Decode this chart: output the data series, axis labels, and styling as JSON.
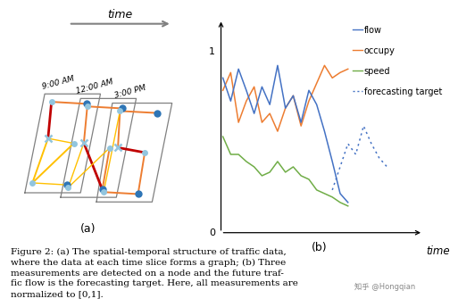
{
  "figure_caption": "Figure 2: (a) The spatial-temporal structure of traffic data,\nwhere the data at each time slice forms a graph; (b) Three\nmeasurements are detected on a node and the future traf-\nfic flow is the forecasting target. Here, all measurements are\nnormalized to [0,1].",
  "watermark": "知乎 @Hongqian",
  "sub_a_label": "(a)",
  "sub_b_label": "(b)",
  "time_labels": [
    "9:00 AM",
    "12:00 AM",
    "3:00 PM"
  ],
  "legend_labels": [
    "flow",
    "occupy",
    "speed",
    "forecasting target"
  ],
  "flow_color": "#4472c4",
  "occupy_color": "#ed7d31",
  "speed_color": "#70ad47",
  "forecast_color": "#4472c4",
  "node_color_light": "#92c5de",
  "node_color_dark": "#2e75b6",
  "x_marker_color": "#92c5de",
  "edge_yellow": "#ffc000",
  "edge_orange": "#ed7d31",
  "edge_red": "#c00000",
  "slice_edge_color": "#808080",
  "background_color": "#ffffff",
  "time_arrow_color": "#808080",
  "flow_data": [
    0.85,
    0.72,
    0.9,
    0.78,
    0.65,
    0.8,
    0.7,
    0.92,
    0.68,
    0.75,
    0.6,
    0.78,
    0.7,
    0.55,
    0.38,
    0.2,
    0.15
  ],
  "occupy_data": [
    0.78,
    0.88,
    0.6,
    0.72,
    0.8,
    0.6,
    0.65,
    0.55,
    0.68,
    0.75,
    0.58,
    0.72,
    0.82,
    0.92,
    0.85,
    0.88,
    0.9
  ],
  "speed_data": [
    0.52,
    0.42,
    0.42,
    0.38,
    0.35,
    0.3,
    0.32,
    0.38,
    0.32,
    0.35,
    0.3,
    0.28,
    0.22,
    0.2,
    0.18,
    0.15,
    0.13
  ],
  "forecast_data_x": [
    14,
    15,
    16,
    17,
    18,
    19,
    20,
    21
  ],
  "forecast_data_y": [
    0.22,
    0.35,
    0.48,
    0.42,
    0.58,
    0.48,
    0.4,
    0.35
  ],
  "n_time_points": 17
}
